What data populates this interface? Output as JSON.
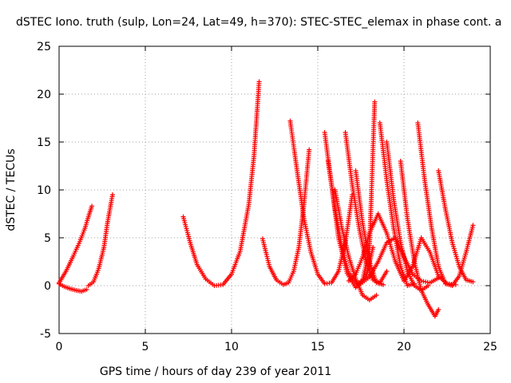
{
  "chart_data": {
    "type": "scatter",
    "title": "dSTEC Iono. truth (sulp, Lon=24, Lat=49, h=370): STEC-STEC_elemax in phase cont. a",
    "xlabel": "GPS time / hours of day 239 of year 2011",
    "ylabel": "dSTEC  / TECUs",
    "xlim": [
      0,
      25
    ],
    "ylim": [
      -5,
      25
    ],
    "x_ticks": [
      "0",
      "5",
      "10",
      "15",
      "20",
      "25"
    ],
    "y_ticks": [
      "-5",
      "0",
      "5",
      "10",
      "15",
      "20",
      "25"
    ],
    "grid": true,
    "marker": "+",
    "color": "#ff0000",
    "arcs": [
      {
        "x": [
          0.0,
          0.3,
          0.6,
          1.0,
          1.3,
          1.6
        ],
        "y": [
          0.2,
          -0.1,
          -0.3,
          -0.5,
          -0.6,
          -0.4
        ]
      },
      {
        "x": [
          0.0,
          0.4,
          0.8,
          1.2,
          1.5,
          1.7,
          1.9
        ],
        "y": [
          0.3,
          1.5,
          3.0,
          4.6,
          6.0,
          7.2,
          8.3
        ]
      },
      {
        "x": [
          1.7,
          2.0,
          2.3,
          2.6,
          2.8,
          3.1
        ],
        "y": [
          0.0,
          0.4,
          1.8,
          4.0,
          6.5,
          9.5
        ]
      },
      {
        "x": [
          7.2,
          7.6,
          8.0,
          8.5,
          9.0,
          9.5,
          10.0,
          10.5,
          11.0,
          11.3,
          11.6
        ],
        "y": [
          7.2,
          4.5,
          2.2,
          0.7,
          0.0,
          0.1,
          1.2,
          3.6,
          8.5,
          13.5,
          21.3
        ]
      },
      {
        "x": [
          11.8,
          12.2,
          12.6,
          13.0,
          13.3,
          13.6,
          13.9,
          14.2,
          14.5
        ],
        "y": [
          4.9,
          2.0,
          0.6,
          0.1,
          0.3,
          1.5,
          4.0,
          8.5,
          14.2
        ]
      },
      {
        "x": [
          13.4,
          13.8,
          14.2,
          14.6,
          15.0,
          15.4,
          15.8,
          16.2,
          16.6,
          17.0
        ],
        "y": [
          17.2,
          12.0,
          7.0,
          3.5,
          1.2,
          0.2,
          0.3,
          1.5,
          4.5,
          9.5
        ]
      },
      {
        "x": [
          15.4,
          15.8,
          16.2,
          16.7,
          17.2,
          17.6,
          18.0,
          18.3
        ],
        "y": [
          16.0,
          10.5,
          5.0,
          1.3,
          -0.2,
          0.5,
          4.0,
          19.2
        ]
      },
      {
        "x": [
          15.6,
          16.0,
          16.4,
          16.8,
          17.3,
          17.8,
          18.2
        ],
        "y": [
          13.0,
          8.0,
          4.0,
          1.3,
          0.2,
          0.8,
          4.0
        ]
      },
      {
        "x": [
          16.0,
          16.4,
          16.8,
          17.2,
          17.6,
          18.0,
          18.4
        ],
        "y": [
          10.0,
          6.0,
          3.0,
          0.7,
          -1.0,
          -1.5,
          -1.0
        ]
      },
      {
        "x": [
          16.6,
          17.0,
          17.4,
          17.8,
          18.2,
          18.6,
          19.0
        ],
        "y": [
          16.0,
          10.5,
          6.0,
          2.5,
          0.6,
          0.3,
          1.5
        ]
      },
      {
        "x": [
          17.2,
          17.6,
          18.0,
          18.4,
          18.8
        ],
        "y": [
          12.0,
          6.5,
          2.5,
          0.3,
          0.1
        ]
      },
      {
        "x": [
          18.6,
          19.0,
          19.4,
          19.8,
          20.2,
          20.6
        ],
        "y": [
          17.0,
          11.0,
          6.0,
          2.0,
          0.0,
          0.2
        ]
      },
      {
        "x": [
          19.0,
          19.4,
          19.8,
          20.2,
          20.6,
          21.0,
          21.4
        ],
        "y": [
          15.0,
          9.0,
          4.5,
          1.5,
          0.0,
          -0.5,
          0.0
        ]
      },
      {
        "x": [
          19.8,
          20.2,
          20.6,
          21.0,
          21.4,
          21.8,
          22.0
        ],
        "y": [
          13.0,
          7.0,
          2.5,
          -0.5,
          -2.0,
          -3.2,
          -2.5
        ]
      },
      {
        "x": [
          20.8,
          21.2,
          21.6,
          22.0,
          22.4,
          22.8,
          23.2,
          23.6,
          24.0
        ],
        "y": [
          17.0,
          11.0,
          6.0,
          2.0,
          0.2,
          0.0,
          1.0,
          3.5,
          6.3
        ]
      },
      {
        "x": [
          22.0,
          22.4,
          22.8,
          23.2,
          23.6,
          24.0
        ],
        "y": [
          12.0,
          8.0,
          4.5,
          2.0,
          0.6,
          0.4
        ]
      },
      {
        "x": [
          17.5,
          18.0,
          18.5,
          19.0,
          19.5,
          20.0,
          20.5,
          21.0,
          21.5,
          22.0
        ],
        "y": [
          0.2,
          0.9,
          2.5,
          4.5,
          5.0,
          3.0,
          1.2,
          0.5,
          0.3,
          0.8
        ]
      },
      {
        "x": [
          16.8,
          17.2,
          17.6,
          18.0,
          18.5,
          19.0,
          19.5,
          20.0
        ],
        "y": [
          0.5,
          1.2,
          3.0,
          5.5,
          7.5,
          5.5,
          2.5,
          0.5
        ]
      },
      {
        "x": [
          20.0,
          20.5,
          21.0,
          21.5,
          22.0,
          22.5,
          23.0
        ],
        "y": [
          0.5,
          2.0,
          5.0,
          3.5,
          1.0,
          0.2,
          0.1
        ]
      }
    ]
  }
}
